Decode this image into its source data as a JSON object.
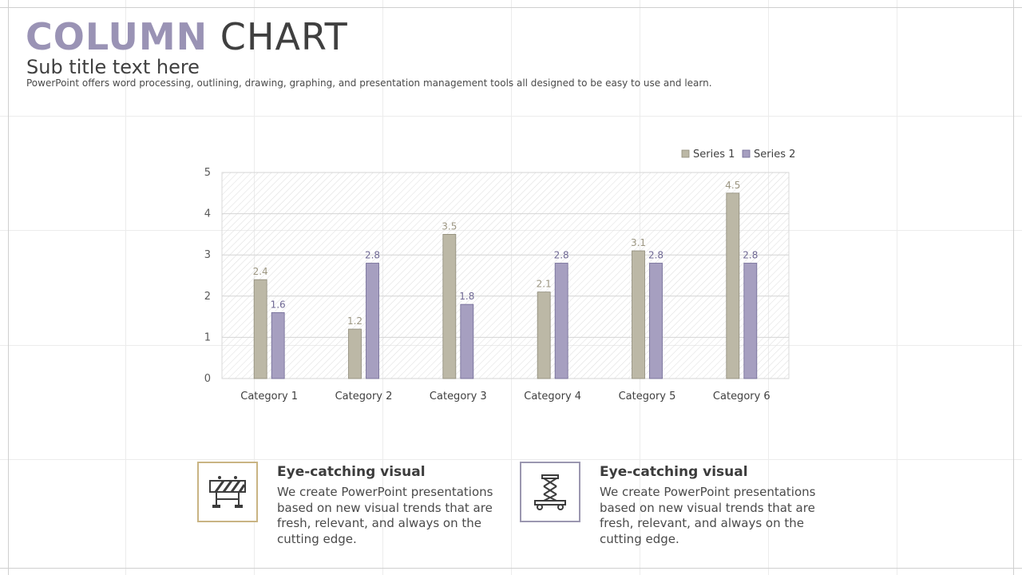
{
  "header": {
    "title_part1": "COLUMN",
    "title_part2": "CHART",
    "subtitle": "Sub title text here",
    "description": "PowerPoint offers word processing, outlining, drawing, graphing, and presentation management tools all designed to be easy to use and learn."
  },
  "colors": {
    "accent_purple": "#9a93b5",
    "series1": "#bcb8a6",
    "series2": "#a69fc0",
    "series1_label": "#9c9682",
    "series2_label": "#6f6894",
    "card1_border": "#c9b483",
    "card2_border": "#9b97b0"
  },
  "chart_data": {
    "type": "bar",
    "categories": [
      "Category 1",
      "Category 2",
      "Category 3",
      "Category 4",
      "Category 5",
      "Category 6"
    ],
    "series": [
      {
        "name": "Series 1",
        "values": [
          2.4,
          1.2,
          3.5,
          2.1,
          3.1,
          4.5
        ]
      },
      {
        "name": "Series 2",
        "values": [
          1.6,
          2.8,
          1.8,
          2.8,
          2.8,
          2.8
        ]
      }
    ],
    "ylim": [
      0,
      5
    ],
    "yticks": [
      0,
      1,
      2,
      3,
      4,
      5
    ],
    "grid": true,
    "data_labels": true,
    "legend_position": "top-right",
    "title": "",
    "xlabel": "",
    "ylabel": ""
  },
  "cards": [
    {
      "icon": "road-barrier-icon",
      "title": "Eye-catching visual",
      "text": "We create PowerPoint presentations based on new visual trends that are fresh, relevant, and always on the cutting edge."
    },
    {
      "icon": "scissor-lift-icon",
      "title": "Eye-catching visual",
      "text": "We create PowerPoint presentations based on new visual trends that are fresh, relevant, and always on the cutting edge."
    }
  ]
}
